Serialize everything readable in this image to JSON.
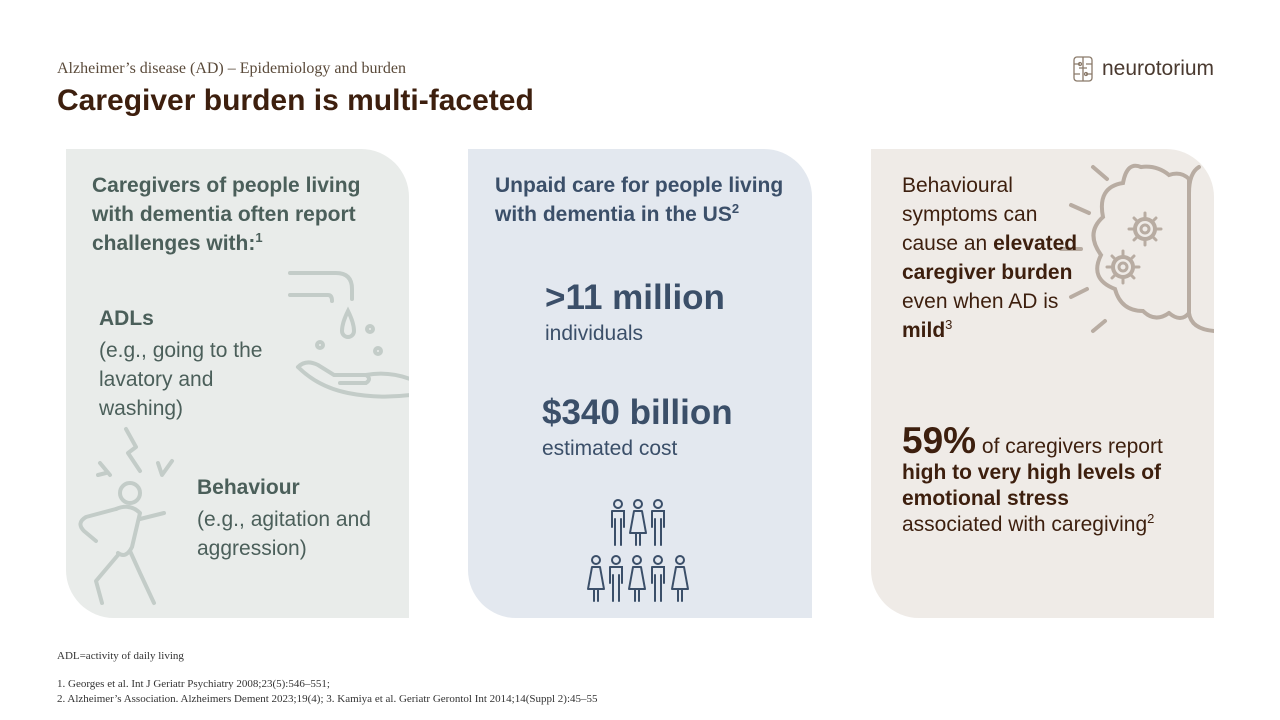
{
  "header": {
    "subtitle": "Alzheimer’s disease (AD) – Epidemiology and burden",
    "title": "Caregiver burden is multi-faceted",
    "logo_text": "neurotorium"
  },
  "panel1": {
    "heading": "Caregivers of people living with dementia often report challenges with:",
    "heading_ref": "1",
    "item1_label": "ADLs",
    "item1_text": "(e.g., going to the lavatory and washing)",
    "item2_label": "Behaviour",
    "item2_text": "(e.g., agitation and aggression)",
    "icons": [
      "hand-washing-icon",
      "agitated-person-icon"
    ]
  },
  "panel2": {
    "heading": "Unpaid care for people living with dementia in the US",
    "heading_ref": "2",
    "stat1_value": ">11 million",
    "stat1_label": "individuals",
    "stat2_value": "$340 billion",
    "stat2_label": "estimated cost",
    "icons": [
      "people-group-icon"
    ]
  },
  "panel3": {
    "text1": "Behavioural symptoms can cause an ",
    "text1_bold": "elevated caregiver burden",
    "text2": " even when AD is ",
    "text2_bold": "mild",
    "text_ref": "3",
    "pct_value": "59%",
    "pct_text": " of caregivers report",
    "pct_bold": "high to very high levels of emotional stress",
    "pct_tail": "associated with caregiving",
    "pct_ref": "2",
    "icons": [
      "head-gears-icon"
    ]
  },
  "footer": {
    "abbrev": "ADL=activity of daily living",
    "ref1": "1. Georges et al. Int J Geriatr Psychiatry 2008;23(5):546–551;",
    "ref2": "2. Alzheimer’s Association. Alzheimers Dement 2023;19(4); 3. Kamiya et al. Geriatr Gerontol Int 2014;14(Suppl 2):45–55"
  },
  "colors": {
    "title": "#3d1f0e",
    "panel1_bg": "#e9ecea",
    "panel2_bg": "#e3e8ef",
    "panel3_bg": "#efebe7",
    "panel1_text": "#4b5f5a",
    "panel2_text": "#3b4f69"
  }
}
